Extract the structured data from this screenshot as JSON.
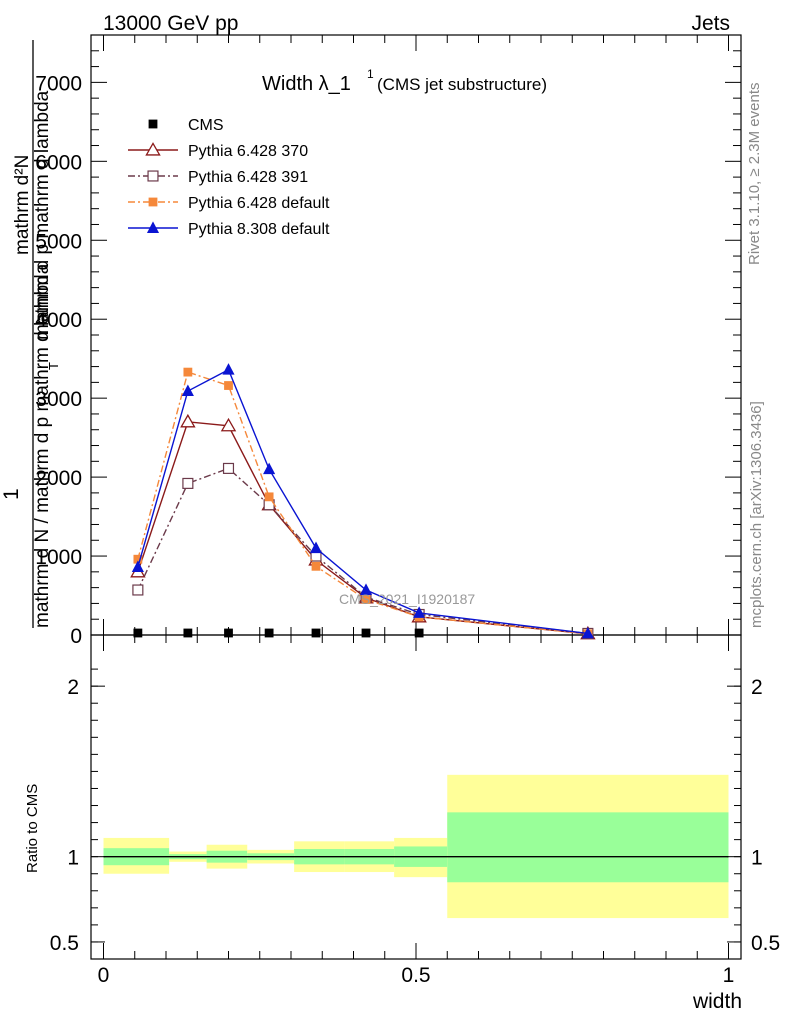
{
  "header": {
    "left": "13000 GeV pp",
    "right": "Jets"
  },
  "title": {
    "main": "Width λ_1",
    "sup": "1",
    "sub": "(CMS jet substructure)"
  },
  "ylabel": {
    "prefix": "1",
    "numerator": "mathrm d N / mathrm d p_T mathrm d lambda",
    "denominator": "mathrm d^{2}N",
    "pieces": [
      "mathrm d",
      "N",
      "mathrm d p_{T} mathrm d lambda",
      "mathrm d N / mathrm d p_{T} mathrm d lambda",
      "T"
    ],
    "lines": [
      "mathrm dN",
      "mathrm d p",
      "mathrm d lambda",
      "mathrm d N / mathrm d p",
      "T"
    ]
  },
  "ylabel_main": {
    "left_text": "1",
    "frac_top": "mathrm d²N",
    "frac_top_sub": "mathrm d p mathrm d lambda",
    "frac_bottom": "mathrm d N / mathrm d p mathrm d lambda",
    "t_sub": "T"
  },
  "side": {
    "rivet": "Rivet 3.1.10, ≥ 2.3M events",
    "mcplots": "mcplots.cern.ch [arXiv:1306.3436]"
  },
  "watermark": "CMS_2021_I1920187",
  "ratio_ylabel": "Ratio to CMS",
  "xlabel": "width",
  "colors": {
    "cms": "#000000",
    "p370": "#8b1a1a",
    "p391": "#6b3a4a",
    "p6def": "#f5883a",
    "p8def": "#0a14d2",
    "band_yellow": "#ffff99",
    "band_green": "#99ff99"
  },
  "chart_data": {
    "type": "line",
    "x": [
      0.055,
      0.135,
      0.2,
      0.265,
      0.34,
      0.42,
      0.505,
      0.775
    ],
    "xlim": [
      -0.02,
      1.02
    ],
    "ylim_main": [
      0,
      7600
    ],
    "main_yticks": [
      0,
      1000,
      2000,
      3000,
      4000,
      5000,
      6000,
      7000
    ],
    "main_ytick_labels": [
      "0",
      "1000",
      "2000",
      "3000",
      "4000",
      "5000",
      "6000",
      "7000"
    ],
    "ratio_ylim": [
      0.4,
      2.3
    ],
    "ratio_yticks": [
      0.5,
      1,
      2
    ],
    "ratio_ytick_labels": [
      "0.5",
      "1",
      "2"
    ],
    "xticks": [
      0,
      0.5,
      1
    ],
    "xtick_labels": [
      "0",
      "0.5",
      "1"
    ],
    "series": [
      {
        "name": "CMS",
        "marker": "square-filled",
        "values": [
          0,
          0,
          0,
          0,
          0,
          0,
          0,
          0
        ]
      },
      {
        "name": "Pythia 6.428 370",
        "marker": "triangle-open",
        "dash": "solid",
        "values": [
          800,
          2700,
          2650,
          1650,
          950,
          470,
          230,
          15
        ]
      },
      {
        "name": "Pythia 6.428 391",
        "marker": "square-open",
        "dash": "dashdot",
        "values": [
          570,
          1920,
          2110,
          1650,
          1000,
          480,
          260,
          20
        ]
      },
      {
        "name": "Pythia 6.428 default",
        "marker": "square-filled",
        "dash": "dashdot",
        "values": [
          960,
          3330,
          3160,
          1750,
          870,
          450,
          230,
          15
        ]
      },
      {
        "name": "Pythia 8.308 default",
        "marker": "triangle-filled",
        "dash": "solid",
        "values": [
          860,
          3090,
          3360,
          2100,
          1100,
          570,
          280,
          20
        ]
      }
    ],
    "ratio_bands": [
      {
        "x0": 0.0,
        "x1": 0.105,
        "y_lo": 0.9,
        "y_hi": 1.11,
        "g_lo": 0.95,
        "g_hi": 1.05
      },
      {
        "x0": 0.105,
        "x1": 0.165,
        "y_lo": 0.97,
        "y_hi": 1.03,
        "g_lo": 0.985,
        "g_hi": 1.015
      },
      {
        "x0": 0.165,
        "x1": 0.23,
        "y_lo": 0.93,
        "y_hi": 1.07,
        "g_lo": 0.965,
        "g_hi": 1.035
      },
      {
        "x0": 0.23,
        "x1": 0.305,
        "y_lo": 0.96,
        "y_hi": 1.04,
        "g_lo": 0.98,
        "g_hi": 1.02
      },
      {
        "x0": 0.305,
        "x1": 0.385,
        "y_lo": 0.91,
        "y_hi": 1.09,
        "g_lo": 0.955,
        "g_hi": 1.045
      },
      {
        "x0": 0.385,
        "x1": 0.465,
        "y_lo": 0.91,
        "y_hi": 1.09,
        "g_lo": 0.955,
        "g_hi": 1.045
      },
      {
        "x0": 0.465,
        "x1": 0.55,
        "y_lo": 0.88,
        "y_hi": 1.11,
        "g_lo": 0.94,
        "g_hi": 1.06
      },
      {
        "x0": 0.55,
        "x1": 1.0,
        "y_lo": 0.64,
        "y_hi": 1.48,
        "g_lo": 0.85,
        "g_hi": 1.26
      }
    ]
  }
}
